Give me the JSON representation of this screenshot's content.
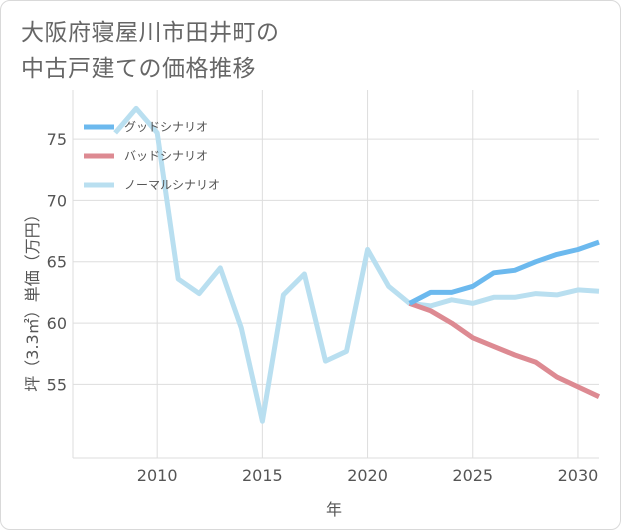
{
  "title_lines": [
    "大阪府寝屋川市田井町の",
    "中古戸建ての価格推移"
  ],
  "chart_data": {
    "type": "line",
    "xlabel": "年",
    "ylabel": "坪（3.3㎡）単価（万円）",
    "xlim": [
      2006,
      2031
    ],
    "ylim": [
      49,
      79
    ],
    "x_ticks": [
      2010,
      2015,
      2020,
      2025,
      2030
    ],
    "y_ticks": [
      55,
      60,
      65,
      70,
      75
    ],
    "grid": true,
    "legend_position": "top-left",
    "series": [
      {
        "name": "グッドシナリオ",
        "color": "#6cb9ee",
        "x": [
          2022,
          2023,
          2024,
          2025,
          2026,
          2027,
          2028,
          2029,
          2030,
          2031
        ],
        "y": [
          61.6,
          62.5,
          62.5,
          63.0,
          64.1,
          64.3,
          65.0,
          65.6,
          66.0,
          66.6
        ]
      },
      {
        "name": "バッドシナリオ",
        "color": "#dd8a92",
        "x": [
          2022,
          2023,
          2024,
          2025,
          2026,
          2027,
          2028,
          2029,
          2030,
          2031
        ],
        "y": [
          61.6,
          61.0,
          60.0,
          58.8,
          58.1,
          57.4,
          56.8,
          55.6,
          54.8,
          54.0
        ]
      },
      {
        "name": "ノーマルシナリオ",
        "color": "#b9dff0",
        "x": [
          2008,
          2009,
          2010,
          2011,
          2012,
          2013,
          2014,
          2015,
          2016,
          2017,
          2018,
          2019,
          2020,
          2021,
          2022,
          2023,
          2024,
          2025,
          2026,
          2027,
          2028,
          2029,
          2030,
          2031
        ],
        "y": [
          75.5,
          77.5,
          75.5,
          63.6,
          62.4,
          64.5,
          59.6,
          52.0,
          62.3,
          64.0,
          56.9,
          57.7,
          66.0,
          63.0,
          61.6,
          61.4,
          61.9,
          61.6,
          62.1,
          62.1,
          62.4,
          62.3,
          62.7,
          62.6
        ]
      }
    ]
  }
}
